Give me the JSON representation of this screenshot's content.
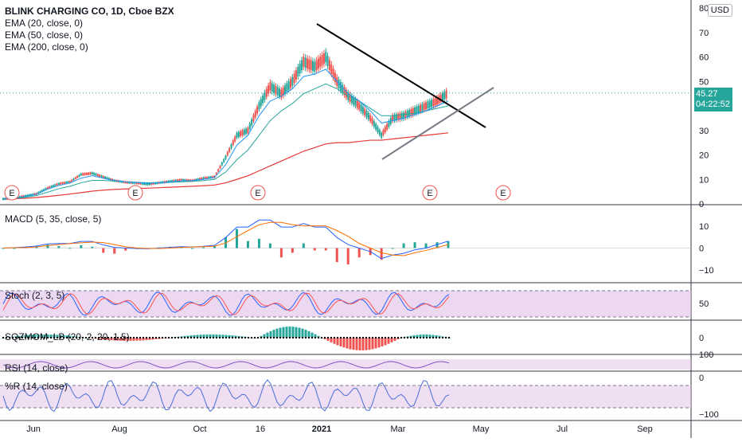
{
  "header": {
    "title": "BLINK CHARGING CO, 1D, Cboe BZX",
    "indicators": [
      "EMA (20, close, 0)",
      "EMA (50, close, 0)",
      "EMA (200, close, 0)"
    ],
    "currency": "USD"
  },
  "price_tag": {
    "price": "45.27",
    "countdown": "04:22:52"
  },
  "earnings_marker": "E",
  "colors": {
    "up": "#26a69a",
    "down": "#ef5350",
    "ema20": "#2196f3",
    "ema50": "#26a69a",
    "ema200": "#e53935",
    "trend": "#000000",
    "support": "#787b86",
    "macd": "#2962ff",
    "signal": "#ff6d00",
    "stoch_k": "#2962ff",
    "stoch_d": "#ff5252",
    "stoch_band": "#e1bee7",
    "rsi": "#7e57c2",
    "willr": "#4a6fd8"
  },
  "panes": {
    "macd": "MACD (5, 35, close, 5)",
    "stoch": "Stoch (2, 3, 5)",
    "sqz": "SQZMOM_LB (20, 2, 20, 1.5)",
    "rsi": "RSI (14, close)",
    "willr": "%R (14, close)"
  },
  "chart_data": {
    "type": "candlestick",
    "x_labels": [
      "Jun",
      "Aug",
      "Oct",
      "16",
      "2021",
      "Mar",
      "May",
      "Jul",
      "Sep"
    ],
    "price_axis": [
      "80",
      "70",
      "60",
      "50",
      "40",
      "30",
      "20",
      "10",
      "0"
    ],
    "ylim": [
      0,
      80
    ],
    "close_series": [
      2.0,
      2.4,
      3.2,
      4.1,
      6.5,
      8.2,
      9.0,
      12.0,
      12.5,
      11.0,
      9.5,
      8.8,
      8.5,
      8.0,
      8.6,
      9.2,
      9.8,
      9.5,
      10.5,
      11.0,
      19.0,
      28.0,
      30.0,
      40.0,
      48.0,
      45.0,
      50.0,
      58.0,
      56.0,
      60.0,
      50.0,
      44.0,
      40.0,
      35.0,
      28.0,
      35.0,
      36.0,
      38.0,
      40.0,
      42.0,
      45.27
    ],
    "ema20": [
      2.0,
      2.3,
      3.0,
      4.0,
      6.0,
      7.5,
      8.5,
      10.5,
      11.5,
      10.5,
      9.5,
      9.0,
      8.7,
      8.4,
      8.6,
      9.0,
      9.4,
      9.5,
      10.0,
      10.8,
      16.0,
      24.0,
      28.0,
      36.0,
      42.0,
      44.0,
      47.0,
      52.0,
      53.0,
      55.0,
      50.0,
      45.0,
      42.0,
      38.0,
      33.0,
      34.0,
      35.0,
      36.5,
      38.0,
      40.0,
      42.0
    ],
    "ema50": [
      2.0,
      2.2,
      2.7,
      3.4,
      4.8,
      6.2,
      7.2,
      8.6,
      9.6,
      9.6,
      9.3,
      9.0,
      8.8,
      8.6,
      8.6,
      8.8,
      9.0,
      9.2,
      9.5,
      10.0,
      13.0,
      18.0,
      22.0,
      28.0,
      34.0,
      38.0,
      41.0,
      45.0,
      47.0,
      49.0,
      47.0,
      44.0,
      42.0,
      39.0,
      36.0,
      36.0,
      36.5,
      37.0,
      38.0,
      39.0,
      40.0
    ],
    "ema200": [
      2.0,
      2.1,
      2.3,
      2.6,
      3.0,
      3.5,
      4.0,
      4.6,
      5.2,
      5.6,
      5.9,
      6.1,
      6.3,
      6.4,
      6.6,
      6.8,
      7.0,
      7.2,
      7.4,
      7.7,
      8.6,
      10.0,
      11.5,
      13.5,
      15.5,
      17.5,
      19.5,
      21.5,
      23.0,
      24.5,
      25.0,
      25.0,
      25.5,
      26.0,
      26.0,
      26.5,
      27.0,
      27.5,
      28.0,
      28.5,
      29.0
    ],
    "macd_axis": [
      "10",
      "0",
      "−10"
    ],
    "stoch_axis": [
      "50"
    ],
    "sqz_axis": [
      "0"
    ],
    "rsi_axis": [
      "100"
    ],
    "willr_axis": [
      "0",
      "−100"
    ]
  }
}
